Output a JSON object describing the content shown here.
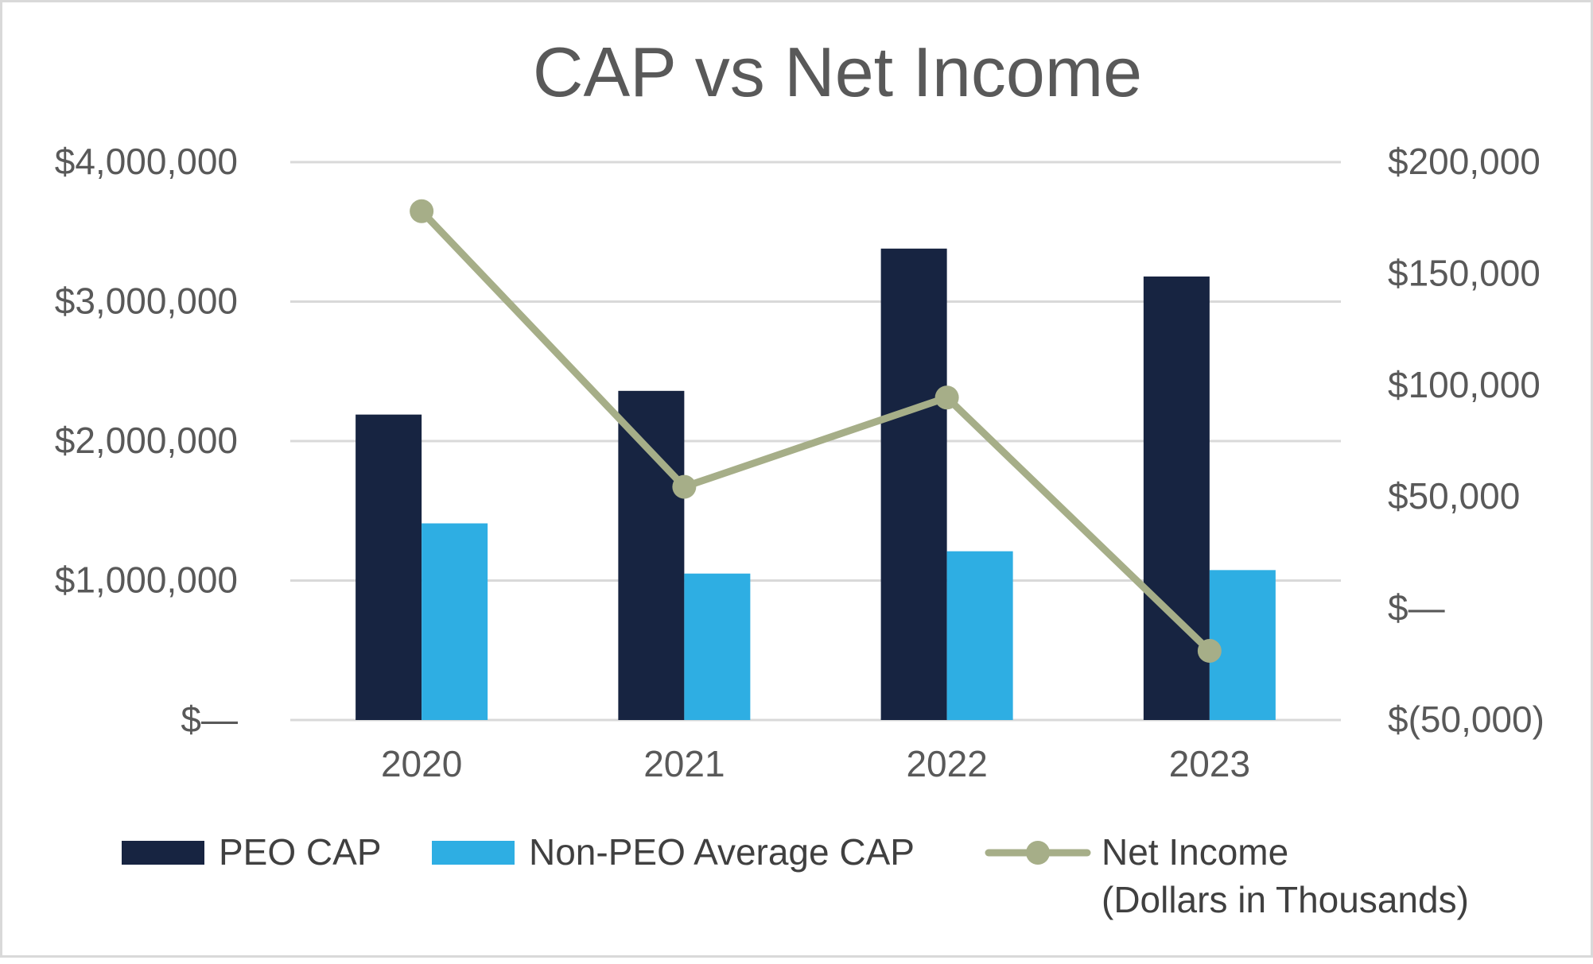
{
  "chart_data": {
    "type": "bar",
    "title": "CAP vs Net Income",
    "categories": [
      "2020",
      "2021",
      "2022",
      "2023"
    ],
    "series": [
      {
        "name": "PEO CAP",
        "type": "bar",
        "axis": "left",
        "color": "#172441",
        "values": [
          2190000,
          2360000,
          3380000,
          3180000
        ]
      },
      {
        "name": "Non-PEO Average CAP",
        "type": "bar",
        "axis": "left",
        "color": "#2eaee3",
        "values": [
          1410000,
          1050000,
          1210000,
          1075000
        ]
      },
      {
        "name": "Net Income\n(Dollars in Thousands)",
        "type": "line",
        "axis": "right",
        "color": "#a6ae88",
        "values": [
          178000,
          54500,
          94500,
          -19000
        ]
      }
    ],
    "y_left": {
      "range": [
        0,
        4000000
      ],
      "ticks": [
        0,
        1000000,
        2000000,
        3000000,
        4000000
      ],
      "tick_labels": [
        "$—",
        "$1,000,000",
        "$2,000,000",
        "$3,000,000",
        "$4,000,000"
      ]
    },
    "y_right": {
      "range": [
        -50000,
        200000
      ],
      "ticks": [
        -50000,
        0,
        50000,
        100000,
        150000,
        200000
      ],
      "tick_labels": [
        "$(50,000)",
        "$—",
        "$50,000",
        "$100,000",
        "$150,000",
        "$200,000"
      ]
    },
    "grid": true,
    "legend_position": "bottom",
    "colors": {
      "title": "#595959",
      "tick_text": "#595959",
      "legend_text": "#404040",
      "grid": "#d9d9d9",
      "frame": "#d9d9d9"
    }
  }
}
